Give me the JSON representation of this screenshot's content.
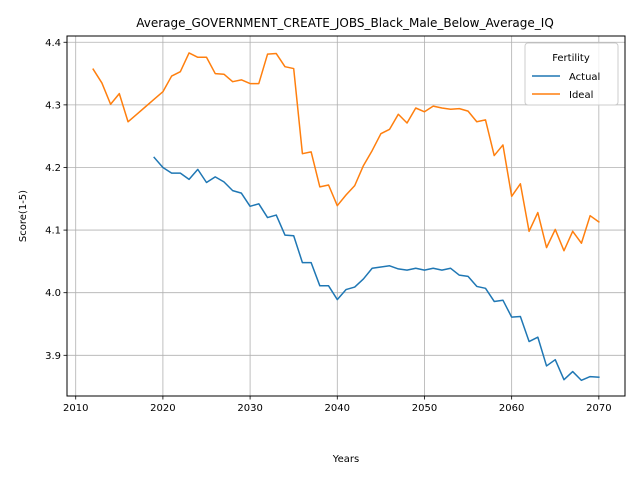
{
  "chart_data": {
    "type": "line",
    "title": "Average_GOVERNMENT_CREATE_JOBS_Black_Male_Below_Average_IQ",
    "xlabel": "Years",
    "ylabel": "Score(1-5)",
    "xlim": [
      2009,
      2073
    ],
    "ylim": [
      3.835,
      4.41
    ],
    "xticks": [
      2010,
      2020,
      2030,
      2040,
      2050,
      2060,
      2070
    ],
    "yticks": [
      3.9,
      4.0,
      4.1,
      4.2,
      4.3,
      4.4
    ],
    "xtick_labels": [
      "2010",
      "2020",
      "2030",
      "2040",
      "2050",
      "2060",
      "2070"
    ],
    "ytick_labels": [
      "3.9",
      "4.0",
      "4.1",
      "4.2",
      "4.3",
      "4.4"
    ],
    "grid": true,
    "legend": {
      "title": "Fertility",
      "position": "top-right"
    },
    "series": [
      {
        "name": "Actual",
        "color": "#1f77b4",
        "x": [
          2019,
          2020,
          2021,
          2022,
          2023,
          2024,
          2025,
          2026,
          2027,
          2028,
          2029,
          2030,
          2031,
          2032,
          2033,
          2034,
          2035,
          2036,
          2037,
          2038,
          2039,
          2040,
          2041,
          2042,
          2043,
          2044,
          2045,
          2046,
          2047,
          2048,
          2049,
          2050,
          2051,
          2052,
          2053,
          2054,
          2055,
          2056,
          2057,
          2058,
          2059,
          2060,
          2061,
          2062,
          2063,
          2064,
          2065,
          2066,
          2067,
          2068,
          2069,
          2070
        ],
        "values": [
          4.216,
          4.2,
          4.191,
          4.191,
          4.181,
          4.197,
          4.176,
          4.185,
          4.177,
          4.163,
          4.159,
          4.138,
          4.142,
          4.12,
          4.124,
          4.092,
          4.091,
          4.048,
          4.048,
          4.011,
          4.011,
          3.989,
          4.005,
          4.009,
          4.022,
          4.039,
          4.041,
          4.043,
          4.038,
          4.036,
          4.039,
          4.036,
          4.039,
          4.036,
          4.039,
          4.028,
          4.026,
          4.01,
          4.007,
          3.986,
          3.988,
          3.961,
          3.962,
          3.922,
          3.929,
          3.883,
          3.893,
          3.861,
          3.874,
          3.86,
          3.866,
          3.865
        ]
      },
      {
        "name": "Ideal",
        "color": "#ff7f0e",
        "x": [
          2012,
          2013,
          2014,
          2015,
          2016,
          2017,
          2018,
          2019,
          2020,
          2021,
          2022,
          2023,
          2024,
          2025,
          2026,
          2027,
          2028,
          2029,
          2030,
          2031,
          2032,
          2033,
          2034,
          2035,
          2036,
          2037,
          2038,
          2039,
          2040,
          2041,
          2042,
          2043,
          2044,
          2045,
          2046,
          2047,
          2048,
          2049,
          2050,
          2051,
          2052,
          2053,
          2054,
          2055,
          2056,
          2057,
          2058,
          2059,
          2060,
          2061,
          2062,
          2063,
          2064,
          2065,
          2066,
          2067,
          2068,
          2069,
          2070
        ],
        "values": [
          4.357,
          4.335,
          4.301,
          4.318,
          4.273,
          4.285,
          4.297,
          4.309,
          4.321,
          4.346,
          4.353,
          4.383,
          4.376,
          4.376,
          4.35,
          4.349,
          4.337,
          4.34,
          4.334,
          4.334,
          4.381,
          4.382,
          4.361,
          4.358,
          4.222,
          4.225,
          4.169,
          4.172,
          4.139,
          4.156,
          4.171,
          4.203,
          4.227,
          4.254,
          4.261,
          4.285,
          4.271,
          4.295,
          4.289,
          4.298,
          4.295,
          4.293,
          4.294,
          4.29,
          4.273,
          4.276,
          4.219,
          4.236,
          4.154,
          4.174,
          4.098,
          4.128,
          4.072,
          4.101,
          4.067,
          4.098,
          4.079,
          4.123,
          4.113
        ]
      }
    ]
  }
}
